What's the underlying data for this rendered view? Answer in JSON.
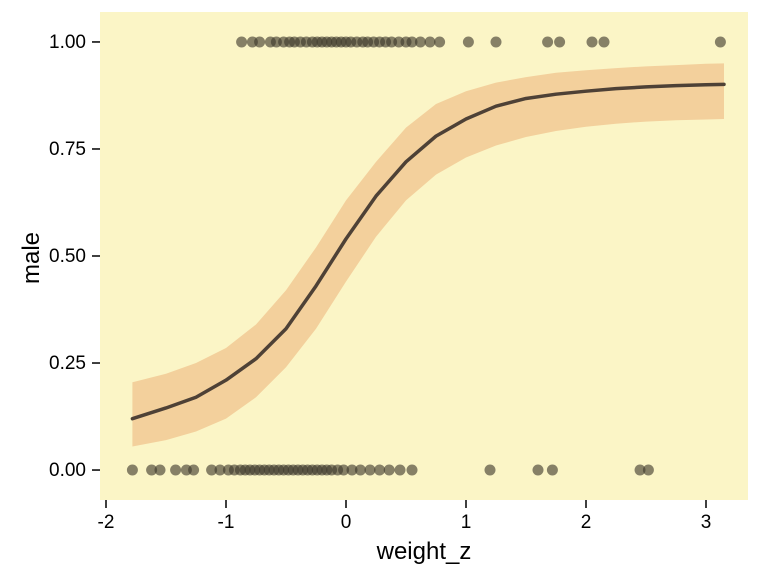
{
  "figure": {
    "background": "#ffffff",
    "panel_background": "#FBF5C6",
    "band_color": "#F3D09C",
    "curve_color": "#4E4136",
    "point_color": "#3E392C",
    "point_opacity": 0.62,
    "axis_color": "#000000"
  },
  "chart_data": {
    "type": "scatter",
    "title": "",
    "xlabel": "weight_z",
    "ylabel": "male",
    "xlim": [
      -2.05,
      3.35
    ],
    "ylim": [
      -0.07,
      1.07
    ],
    "grid": false,
    "legend": "none",
    "x_ticks": [
      -2,
      -1,
      0,
      1,
      2,
      3
    ],
    "x_tick_labels": [
      "-2",
      "-1",
      "0",
      "1",
      "2",
      "3"
    ],
    "y_ticks": [
      0.0,
      0.25,
      0.5,
      0.75,
      1.0
    ],
    "y_tick_labels": [
      "0.00",
      "0.25",
      "0.50",
      "0.75",
      "1.00"
    ],
    "curve": {
      "name": "logistic fit (posterior mean)",
      "x": [
        -1.78,
        -1.5,
        -1.25,
        -1.0,
        -0.75,
        -0.5,
        -0.25,
        0.0,
        0.25,
        0.5,
        0.75,
        1.0,
        1.25,
        1.5,
        1.75,
        2.0,
        2.25,
        2.5,
        2.75,
        3.0,
        3.15
      ],
      "y": [
        0.12,
        0.145,
        0.17,
        0.21,
        0.26,
        0.33,
        0.43,
        0.54,
        0.64,
        0.72,
        0.78,
        0.82,
        0.85,
        0.868,
        0.878,
        0.885,
        0.891,
        0.895,
        0.898,
        0.9,
        0.901
      ]
    },
    "band": {
      "name": "credible interval",
      "x": [
        -1.78,
        -1.5,
        -1.25,
        -1.0,
        -0.75,
        -0.5,
        -0.25,
        0.0,
        0.25,
        0.5,
        0.75,
        1.0,
        1.25,
        1.5,
        1.75,
        2.0,
        2.25,
        2.5,
        2.75,
        3.0,
        3.15
      ],
      "upper": [
        0.205,
        0.225,
        0.25,
        0.285,
        0.34,
        0.42,
        0.52,
        0.63,
        0.72,
        0.8,
        0.855,
        0.885,
        0.905,
        0.918,
        0.928,
        0.934,
        0.939,
        0.943,
        0.946,
        0.949,
        0.95
      ],
      "lower": [
        0.055,
        0.07,
        0.09,
        0.12,
        0.17,
        0.24,
        0.33,
        0.44,
        0.545,
        0.63,
        0.69,
        0.73,
        0.758,
        0.778,
        0.792,
        0.802,
        0.809,
        0.814,
        0.817,
        0.819,
        0.82
      ]
    },
    "points": {
      "male1_y": 1.0,
      "male1_x": [
        -0.87,
        -0.78,
        -0.72,
        -0.63,
        -0.58,
        -0.52,
        -0.47,
        -0.43,
        -0.38,
        -0.33,
        -0.28,
        -0.24,
        -0.2,
        -0.16,
        -0.12,
        -0.08,
        -0.04,
        0.0,
        0.04,
        0.09,
        0.14,
        0.18,
        0.23,
        0.28,
        0.33,
        0.38,
        0.44,
        0.5,
        0.55,
        0.62,
        0.7,
        0.78,
        1.02,
        1.25,
        1.68,
        1.78,
        2.05,
        2.15,
        3.12
      ],
      "male0_y": 0.0,
      "male0_x": [
        -1.78,
        -1.62,
        -1.55,
        -1.42,
        -1.33,
        -1.27,
        -1.12,
        -1.05,
        -0.98,
        -0.93,
        -0.88,
        -0.84,
        -0.8,
        -0.76,
        -0.72,
        -0.68,
        -0.64,
        -0.6,
        -0.56,
        -0.52,
        -0.48,
        -0.44,
        -0.4,
        -0.36,
        -0.32,
        -0.28,
        -0.24,
        -0.2,
        -0.16,
        -0.12,
        -0.07,
        -0.02,
        0.05,
        0.12,
        0.2,
        0.28,
        0.36,
        0.45,
        0.55,
        1.2,
        1.6,
        1.72,
        2.45,
        2.52
      ]
    }
  }
}
